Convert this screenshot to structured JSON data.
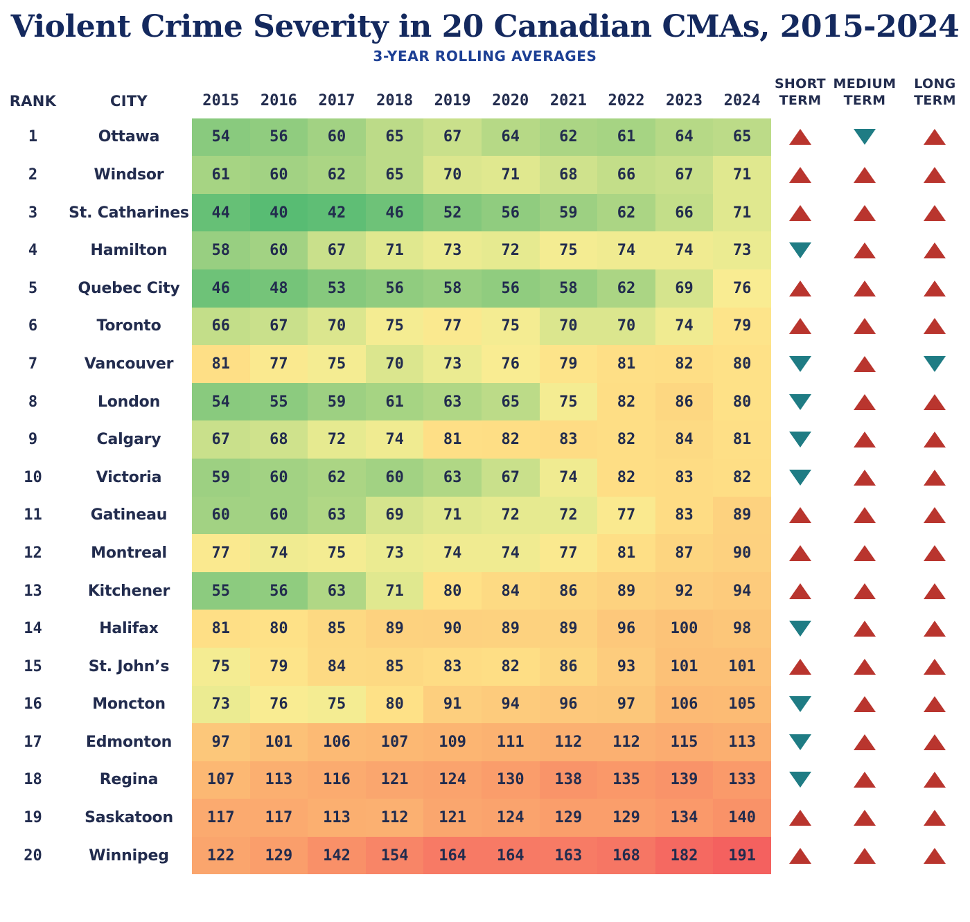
{
  "title": "Violent Crime Severity in 20 Canadian CMAs, 2015-2024",
  "subtitle": "3-YEAR ROLLING AVERAGES",
  "columns": {
    "rank": "RANK",
    "city": "CITY",
    "years": [
      "2015",
      "2016",
      "2017",
      "2018",
      "2019",
      "2020",
      "2021",
      "2022",
      "2023",
      "2024"
    ],
    "trends": [
      "SHORT TERM",
      "MEDIUM TERM",
      "LONG TERM"
    ]
  },
  "colors": {
    "title": "#14295e",
    "subtitle": "#1c3f94",
    "text": "#222c4e",
    "up_triangle": "#b9352e",
    "down_triangle": "#1f7c84",
    "background": "#ffffff"
  },
  "chart_data": {
    "type": "heatmap",
    "title": "Violent Crime Severity in 20 Canadian CMAs, 2015-2024",
    "subtitle": "3-YEAR ROLLING AVERAGES",
    "x": [
      2015,
      2016,
      2017,
      2018,
      2019,
      2020,
      2021,
      2022,
      2023,
      2024
    ],
    "value_range": [
      40,
      191
    ],
    "color_scale": {
      "description": "green (low) to yellow to red (high)",
      "stops": [
        [
          40,
          "#58bc73"
        ],
        [
          50,
          "#7cc67b"
        ],
        [
          57,
          "#93cd80"
        ],
        [
          63,
          "#b0d785"
        ],
        [
          68,
          "#cfe28c"
        ],
        [
          72,
          "#e6ea90"
        ],
        [
          76,
          "#f9ec92"
        ],
        [
          80,
          "#fee187"
        ],
        [
          86,
          "#fdd781"
        ],
        [
          93,
          "#fdcc7d"
        ],
        [
          100,
          "#fcc378"
        ],
        [
          107,
          "#fcb873"
        ],
        [
          114,
          "#fbad70"
        ],
        [
          123,
          "#faa46d"
        ],
        [
          132,
          "#fa9b6a"
        ],
        [
          142,
          "#f99068"
        ],
        [
          155,
          "#f88467"
        ],
        [
          170,
          "#f67463"
        ],
        [
          191,
          "#f4615f"
        ]
      ]
    },
    "rows": [
      {
        "rank": "1",
        "city": "Ottawa",
        "values": [
          54,
          56,
          60,
          65,
          67,
          64,
          62,
          61,
          64,
          65
        ],
        "short_term": "up",
        "medium_term": "down",
        "long_term": "up"
      },
      {
        "rank": "2",
        "city": "Windsor",
        "values": [
          61,
          60,
          62,
          65,
          70,
          71,
          68,
          66,
          67,
          71
        ],
        "short_term": "up",
        "medium_term": "up",
        "long_term": "up"
      },
      {
        "rank": "3",
        "city": "St. Catharines",
        "values": [
          44,
          40,
          42,
          46,
          52,
          56,
          59,
          62,
          66,
          71
        ],
        "short_term": "up",
        "medium_term": "up",
        "long_term": "up"
      },
      {
        "rank": "4",
        "city": "Hamilton",
        "values": [
          58,
          60,
          67,
          71,
          73,
          72,
          75,
          74,
          74,
          73
        ],
        "short_term": "down",
        "medium_term": "up",
        "long_term": "up"
      },
      {
        "rank": "5",
        "city": "Quebec City",
        "values": [
          46,
          48,
          53,
          56,
          58,
          56,
          58,
          62,
          69,
          76
        ],
        "short_term": "up",
        "medium_term": "up",
        "long_term": "up"
      },
      {
        "rank": "6",
        "city": "Toronto",
        "values": [
          66,
          67,
          70,
          75,
          77,
          75,
          70,
          70,
          74,
          79
        ],
        "short_term": "up",
        "medium_term": "up",
        "long_term": "up"
      },
      {
        "rank": "7",
        "city": "Vancouver",
        "values": [
          81,
          77,
          75,
          70,
          73,
          76,
          79,
          81,
          82,
          80
        ],
        "short_term": "down",
        "medium_term": "up",
        "long_term": "down"
      },
      {
        "rank": "8",
        "city": "London",
        "values": [
          54,
          55,
          59,
          61,
          63,
          65,
          75,
          82,
          86,
          80
        ],
        "short_term": "down",
        "medium_term": "up",
        "long_term": "up"
      },
      {
        "rank": "9",
        "city": "Calgary",
        "values": [
          67,
          68,
          72,
          74,
          81,
          82,
          83,
          82,
          84,
          81
        ],
        "short_term": "down",
        "medium_term": "up",
        "long_term": "up"
      },
      {
        "rank": "10",
        "city": "Victoria",
        "values": [
          59,
          60,
          62,
          60,
          63,
          67,
          74,
          82,
          83,
          82
        ],
        "short_term": "down",
        "medium_term": "up",
        "long_term": "up"
      },
      {
        "rank": "11",
        "city": "Gatineau",
        "values": [
          60,
          60,
          63,
          69,
          71,
          72,
          72,
          77,
          83,
          89
        ],
        "short_term": "up",
        "medium_term": "up",
        "long_term": "up"
      },
      {
        "rank": "12",
        "city": "Montreal",
        "values": [
          77,
          74,
          75,
          73,
          74,
          74,
          77,
          81,
          87,
          90
        ],
        "short_term": "up",
        "medium_term": "up",
        "long_term": "up"
      },
      {
        "rank": "13",
        "city": "Kitchener",
        "values": [
          55,
          56,
          63,
          71,
          80,
          84,
          86,
          89,
          92,
          94
        ],
        "short_term": "up",
        "medium_term": "up",
        "long_term": "up"
      },
      {
        "rank": "14",
        "city": "Halifax",
        "values": [
          81,
          80,
          85,
          89,
          90,
          89,
          89,
          96,
          100,
          98
        ],
        "short_term": "down",
        "medium_term": "up",
        "long_term": "up"
      },
      {
        "rank": "15",
        "city": "St. John’s",
        "values": [
          75,
          79,
          84,
          85,
          83,
          82,
          86,
          93,
          101,
          101
        ],
        "short_term": "up",
        "medium_term": "up",
        "long_term": "up"
      },
      {
        "rank": "16",
        "city": "Moncton",
        "values": [
          73,
          76,
          75,
          80,
          91,
          94,
          96,
          97,
          106,
          105
        ],
        "short_term": "down",
        "medium_term": "up",
        "long_term": "up"
      },
      {
        "rank": "17",
        "city": "Edmonton",
        "values": [
          97,
          101,
          106,
          107,
          109,
          111,
          112,
          112,
          115,
          113
        ],
        "short_term": "down",
        "medium_term": "up",
        "long_term": "up"
      },
      {
        "rank": "18",
        "city": "Regina",
        "values": [
          107,
          113,
          116,
          121,
          124,
          130,
          138,
          135,
          139,
          133
        ],
        "short_term": "down",
        "medium_term": "up",
        "long_term": "up"
      },
      {
        "rank": "19",
        "city": "Saskatoon",
        "values": [
          117,
          117,
          113,
          112,
          121,
          124,
          129,
          129,
          134,
          140
        ],
        "short_term": "up",
        "medium_term": "up",
        "long_term": "up"
      },
      {
        "rank": "20",
        "city": "Winnipeg",
        "values": [
          122,
          129,
          142,
          154,
          164,
          164,
          163,
          168,
          182,
          191
        ],
        "short_term": "up",
        "medium_term": "up",
        "long_term": "up"
      }
    ]
  }
}
